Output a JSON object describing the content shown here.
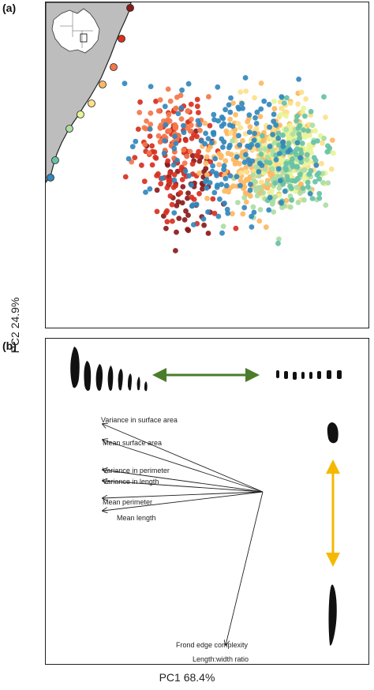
{
  "figure": {
    "panel_a_label": "(a)",
    "panel_b_label": "(b)",
    "y_axis_label": "PC2 24.9%",
    "x_axis_label": "PC1 68.4%"
  },
  "site_colors": [
    "#8b1a1a",
    "#d7301f",
    "#f4764b",
    "#fdb863",
    "#fee08b",
    "#e6f598",
    "#abdda4",
    "#66c2a5",
    "#3288bd"
  ],
  "vectors": [
    {
      "label": "Variance in surface area"
    },
    {
      "label": "Mean surface area"
    },
    {
      "label": "Variance in perimeter"
    },
    {
      "label": "Variance in length"
    },
    {
      "label": "Mean perimeter"
    },
    {
      "label": "Mean length"
    },
    {
      "label": "Frond edge complexity"
    },
    {
      "label": "Length:width ratio"
    }
  ],
  "arrow_colors": {
    "pc1": "#4a7c2a",
    "pc2": "#f5b800"
  }
}
